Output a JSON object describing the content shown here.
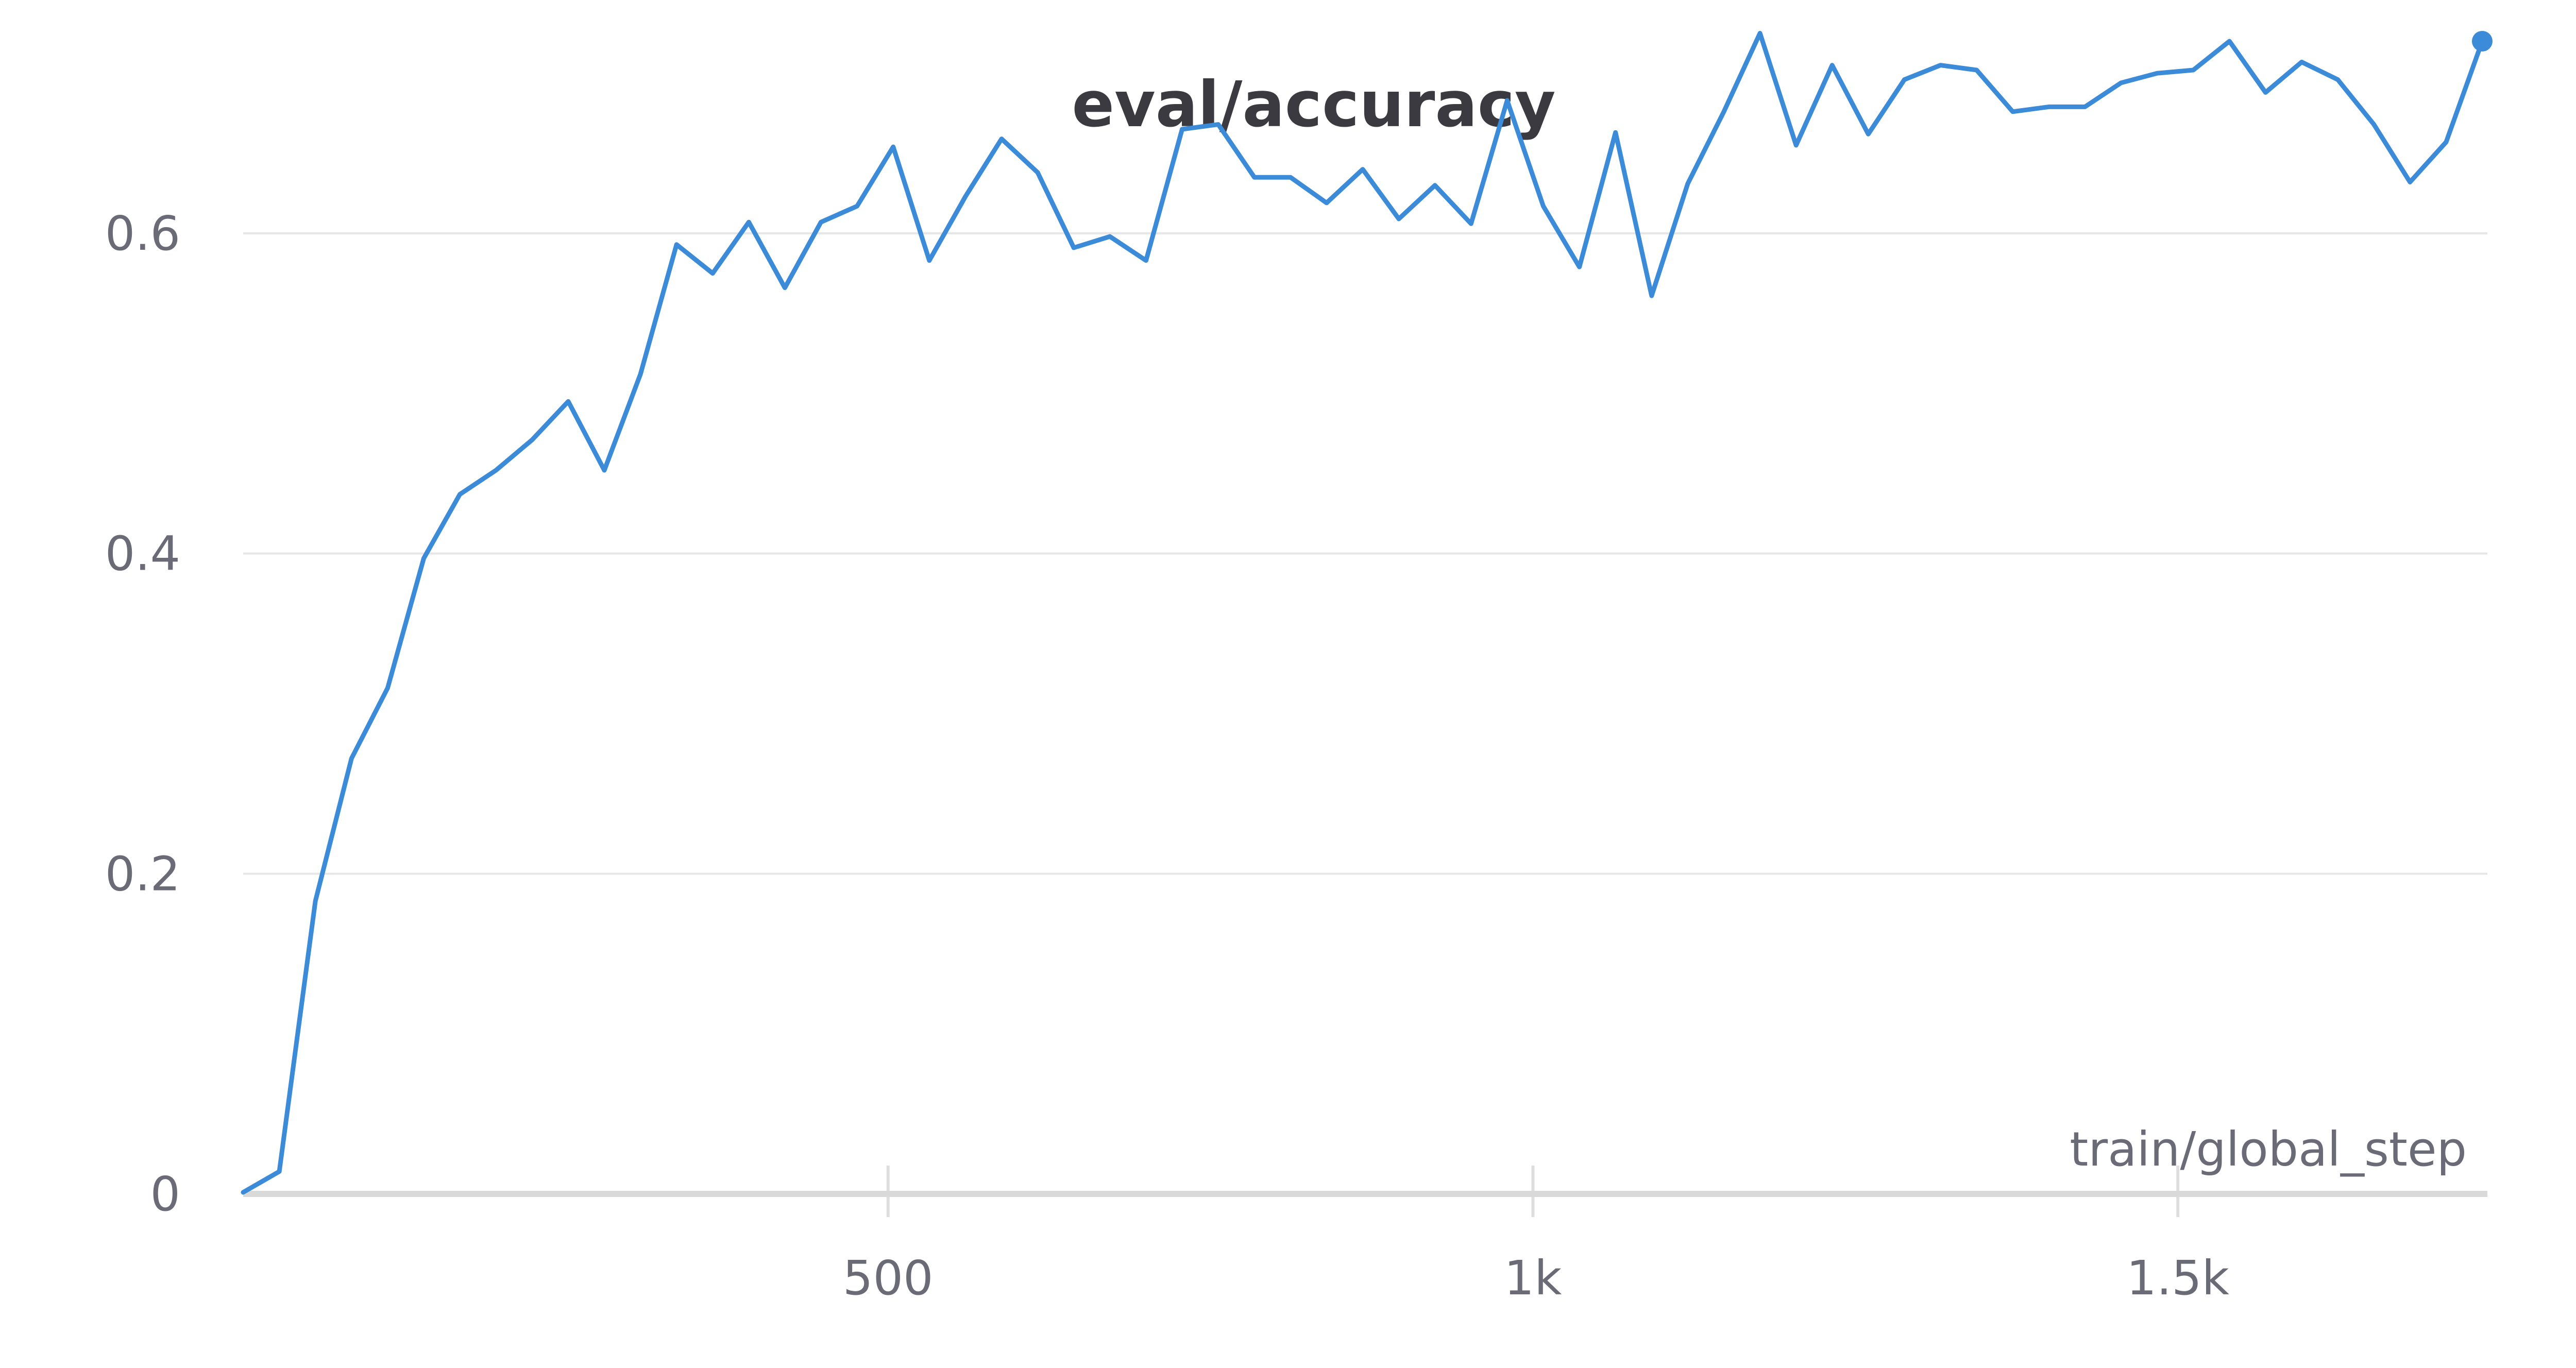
{
  "chart_data": {
    "type": "line",
    "title": "eval/accuracy",
    "xlabel": "train/global_step",
    "ylabel": "",
    "xlim": [
      0,
      1740
    ],
    "ylim": [
      0,
      0.72
    ],
    "x_ticks": [
      500,
      1000,
      1500
    ],
    "x_tick_labels": [
      "500",
      "1k",
      "1.5k"
    ],
    "y_ticks": [
      0,
      0.2,
      0.4,
      0.6
    ],
    "y_tick_labels": [
      "0",
      "0.2",
      "0.4",
      "0.6"
    ],
    "grid": true,
    "series": [
      {
        "color": "#3b8bd8",
        "x": [
          0,
          28,
          56,
          84,
          112,
          140,
          168,
          196,
          224,
          252,
          280,
          308,
          336,
          364,
          392,
          420,
          448,
          476,
          504,
          532,
          560,
          588,
          616,
          644,
          672,
          700,
          728,
          756,
          784,
          812,
          840,
          868,
          896,
          924,
          952,
          980,
          1008,
          1036,
          1064,
          1092,
          1120,
          1148,
          1176,
          1204,
          1232,
          1260,
          1288,
          1316,
          1344,
          1372,
          1400,
          1428,
          1456,
          1484,
          1512,
          1540,
          1568,
          1596,
          1624,
          1652,
          1680,
          1708,
          1736
        ],
        "y": [
          0.001,
          0.014,
          0.183,
          0.272,
          0.316,
          0.397,
          0.437,
          0.452,
          0.471,
          0.495,
          0.452,
          0.512,
          0.593,
          0.575,
          0.607,
          0.566,
          0.607,
          0.617,
          0.654,
          0.583,
          0.623,
          0.659,
          0.638,
          0.591,
          0.598,
          0.583,
          0.665,
          0.668,
          0.635,
          0.635,
          0.619,
          0.64,
          0.609,
          0.63,
          0.606,
          0.683,
          0.617,
          0.579,
          0.663,
          0.561,
          0.631,
          0.676,
          0.725,
          0.655,
          0.705,
          0.662,
          0.696,
          0.705,
          0.702,
          0.676,
          0.679,
          0.679,
          0.694,
          0.7,
          0.702,
          0.72,
          0.688,
          0.707,
          0.696,
          0.668,
          0.632,
          0.657,
          0.72
        ]
      }
    ]
  }
}
